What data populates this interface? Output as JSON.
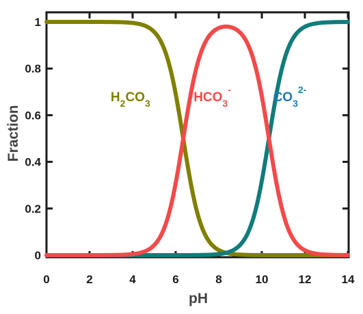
{
  "chart_data": {
    "type": "line",
    "xlabel": "pH",
    "ylabel": "Fraction",
    "xlim": [
      0,
      14
    ],
    "ylim": [
      0,
      1
    ],
    "x_ticks": [
      0,
      2,
      4,
      6,
      8,
      10,
      12,
      14
    ],
    "y_ticks": [
      0,
      0.2,
      0.4,
      0.6,
      0.8,
      1
    ],
    "y_tick_labels": [
      "0",
      "0.2",
      "0.4",
      "0.6",
      "0.8",
      "1"
    ],
    "grid": false,
    "pKa1": 6.35,
    "pKa2": 10.33,
    "series": [
      {
        "color": "#808000",
        "x": [
          0,
          2,
          3,
          4,
          4.5,
          5,
          5.5,
          6,
          6.5,
          7,
          7.5,
          8,
          8.5,
          9,
          10,
          11,
          14
        ],
        "values": [
          1.0,
          1.0,
          1.0,
          1.0,
          0.99,
          0.97,
          0.88,
          0.69,
          0.41,
          0.18,
          0.066,
          0.022,
          0.007,
          0.002,
          0.0002,
          0.0,
          0.0
        ]
      },
      {
        "color": "#f24a4a",
        "x": [
          0,
          2,
          3,
          4,
          4.5,
          5,
          5.5,
          6,
          6.5,
          7,
          7.5,
          8,
          8.5,
          9,
          9.5,
          10,
          10.5,
          11,
          11.5,
          12,
          13,
          14
        ],
        "values": [
          0.0,
          0.0,
          0.0004,
          0.004,
          0.014,
          0.043,
          0.12,
          0.31,
          0.58,
          0.81,
          0.93,
          0.95,
          0.91,
          0.78,
          0.57,
          0.31,
          0.12,
          0.04,
          0.013,
          0.004,
          0.0004,
          0.0
        ]
      },
      {
        "color": "#127c7c",
        "x": [
          0,
          6,
          6.5,
          7,
          7.5,
          8,
          8.5,
          9,
          9.5,
          10,
          10.5,
          11,
          11.5,
          12,
          13,
          14
        ],
        "values": [
          0.0,
          0.0003,
          0.001,
          0.004,
          0.01,
          0.03,
          0.08,
          0.22,
          0.43,
          0.68,
          0.88,
          0.96,
          0.987,
          0.996,
          1.0,
          1.0
        ]
      }
    ],
    "annotations": [
      {
        "base": "H",
        "sub1": "2",
        "mid": "CO",
        "sub2": "3",
        "sup": "",
        "color": "#808000",
        "x": 3.9,
        "y": 0.66
      },
      {
        "base": "HCO",
        "sub1": "3",
        "mid": "",
        "sub2": "",
        "sup": "-",
        "color": "#f24a4a",
        "x": 7.7,
        "y": 0.66
      },
      {
        "base": "CO",
        "sub1": "3",
        "mid": "",
        "sub2": "",
        "sup": "2-",
        "color": "#1f78b4",
        "x": 11.3,
        "y": 0.66
      }
    ]
  }
}
